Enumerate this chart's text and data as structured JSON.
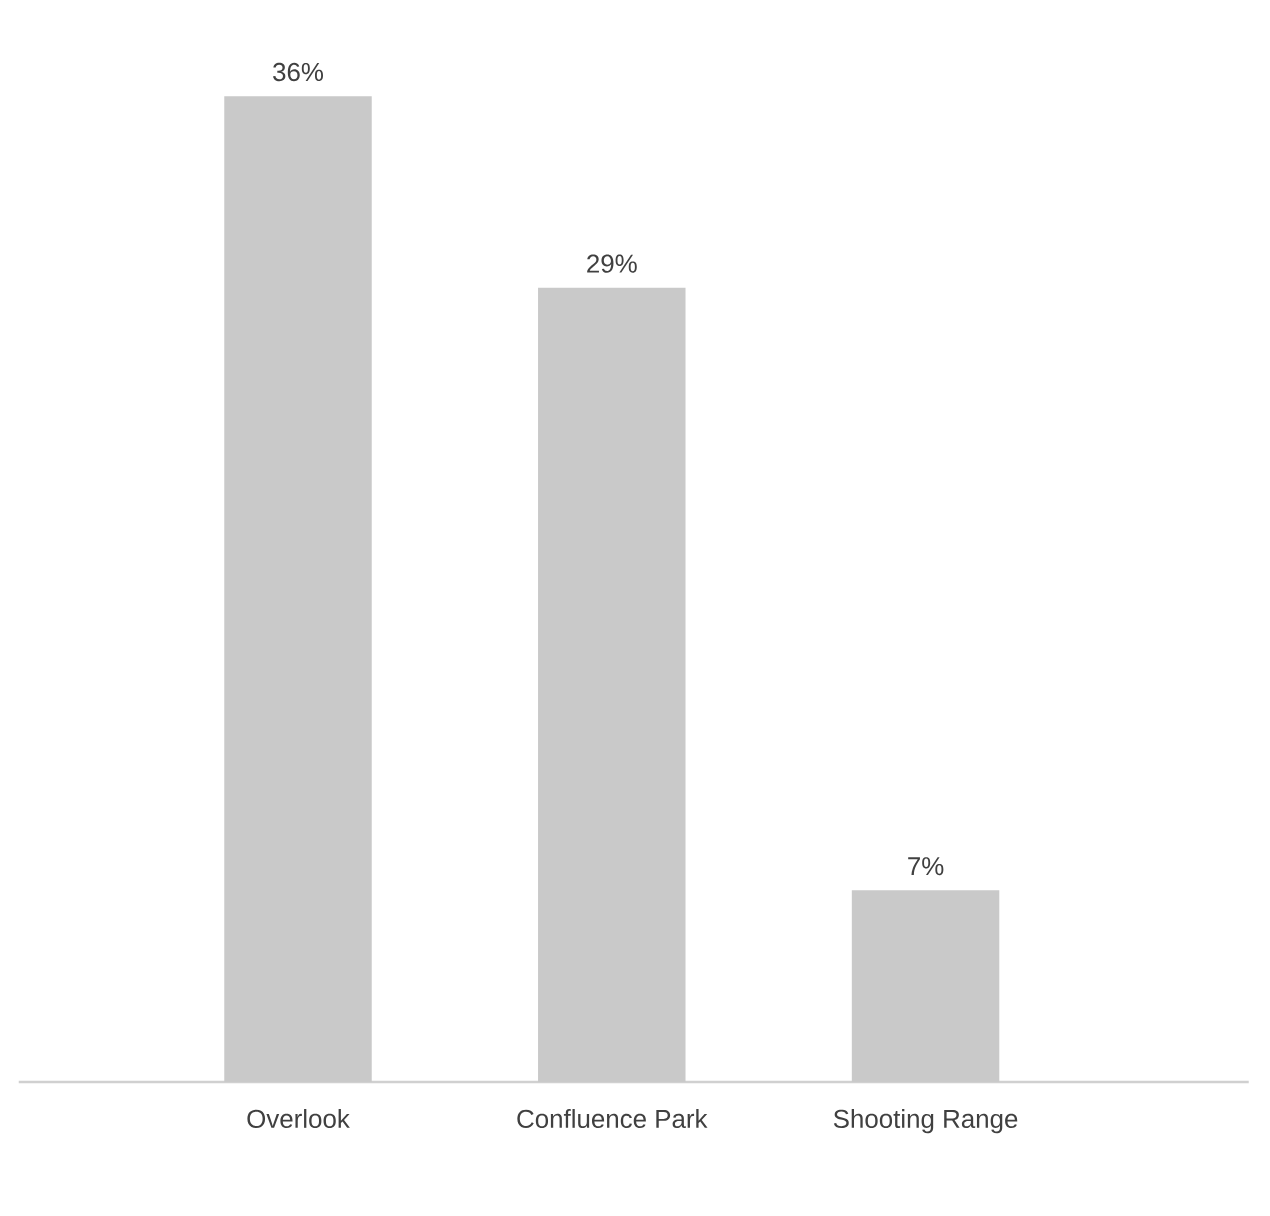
{
  "chart_data": {
    "type": "bar",
    "categories": [
      "Overlook",
      "Confluence Park",
      "Shooting Range"
    ],
    "values": [
      36,
      29,
      7
    ],
    "value_labels": [
      "36%",
      "29%",
      "7%"
    ],
    "color": "#c9c9c9"
  }
}
